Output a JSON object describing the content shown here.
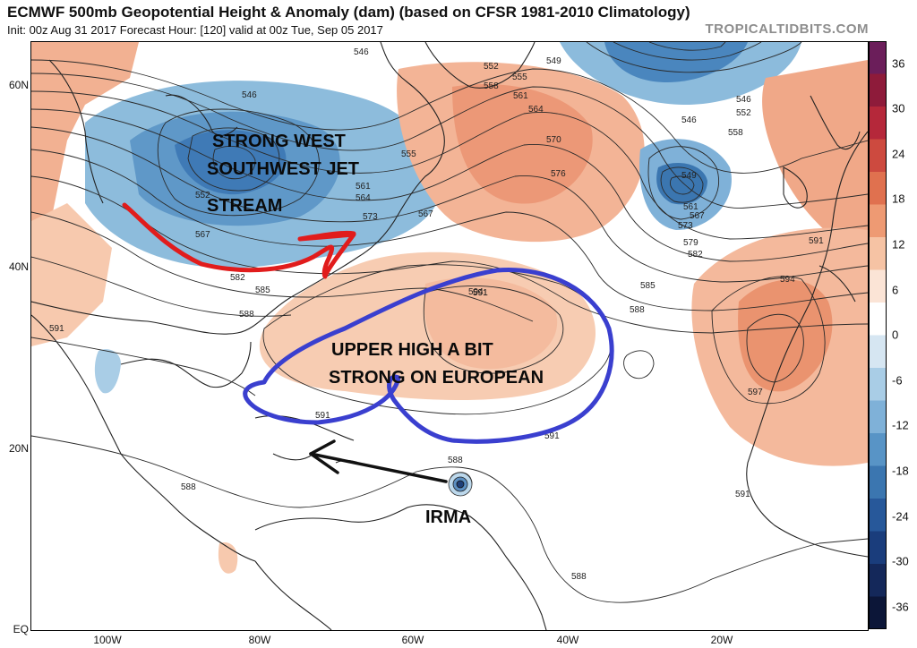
{
  "title": "ECMWF 500mb Geopotential Height & Anomaly (dam) (based on CFSR 1981-2010 Climatology)",
  "subtitle": "Init: 00z Aug 31 2017   Forecast Hour: [120]   valid at 00z Tue, Sep 05 2017",
  "site": "TROPICALTIDBITS.COM",
  "lat_labels": [
    "60N",
    "40N",
    "20N",
    "EQ"
  ],
  "lon_labels": [
    "100W",
    "80W",
    "60W",
    "40W",
    "20W"
  ],
  "colorbar": {
    "labels": [
      "36",
      "30",
      "24",
      "18",
      "12",
      "6",
      "0",
      "-6",
      "-12",
      "-18",
      "-24",
      "-30",
      "-36"
    ],
    "colors": [
      "#6b1e5a",
      "#8e1b3a",
      "#b5283a",
      "#cd4a3f",
      "#e0714f",
      "#ee9a73",
      "#f6c3a4",
      "#fbe4d6",
      "#ffffff",
      "#d6e6f2",
      "#a9cde6",
      "#7fb1d8",
      "#5894c6",
      "#3b76b0",
      "#27589a",
      "#1a3d7c",
      "#14285a",
      "#0c1638"
    ]
  },
  "contour_labels": [
    "546",
    "549",
    "552",
    "555",
    "558",
    "561",
    "564",
    "567",
    "570",
    "573",
    "576",
    "579",
    "582",
    "585",
    "588",
    "591",
    "594",
    "597"
  ],
  "annotations": {
    "jet": [
      "STRONG WEST",
      "SOUTHWEST JET",
      "STREAM"
    ],
    "high": [
      "UPPER HIGH A BIT",
      "STRONG ON EUROPEAN"
    ],
    "storm": "IRMA"
  },
  "colors": {
    "annotation_red": "#e11c1c",
    "annotation_blue": "#3a3fcf",
    "arrow": "#111111"
  }
}
